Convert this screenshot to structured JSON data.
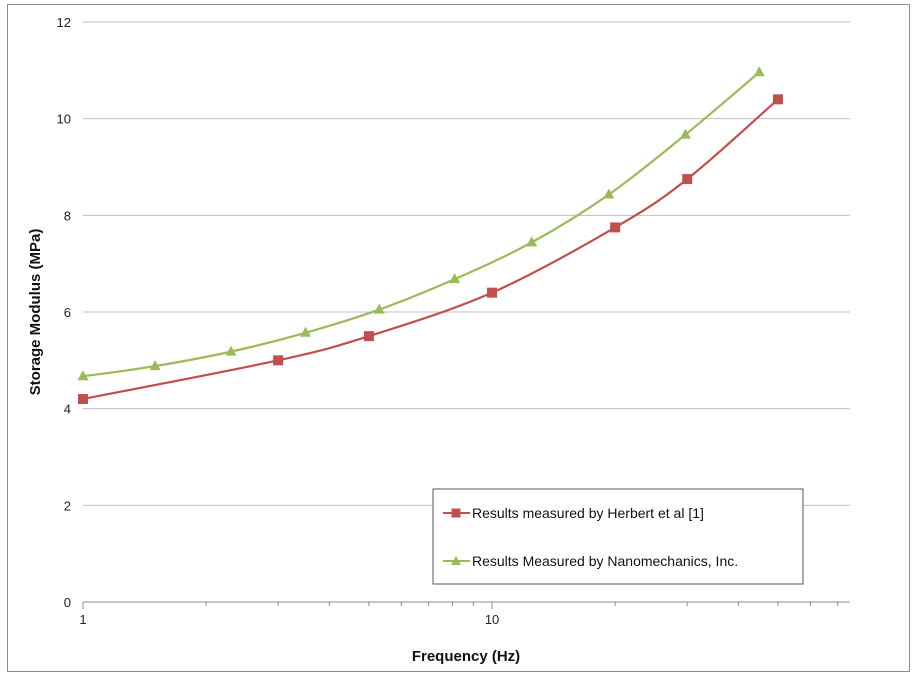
{
  "chart_data": {
    "type": "line",
    "title": "",
    "xlabel": "Frequency (Hz)",
    "ylabel": "Storage Modulus (MPa)",
    "x_scale": "log",
    "xlim": [
      1,
      75
    ],
    "ylim": [
      0,
      12
    ],
    "x_ticks": [
      {
        "value": 1,
        "label": "1"
      },
      {
        "value": 10,
        "label": "10"
      }
    ],
    "x_minor_ticks": [
      2,
      3,
      4,
      5,
      6,
      7,
      8,
      9,
      20,
      30,
      40,
      50,
      60,
      70
    ],
    "y_ticks": [
      {
        "value": 0,
        "label": "0"
      },
      {
        "value": 2,
        "label": "2"
      },
      {
        "value": 4,
        "label": "4"
      },
      {
        "value": 6,
        "label": "6"
      },
      {
        "value": 8,
        "label": "8"
      },
      {
        "value": 10,
        "label": "10"
      },
      {
        "value": 12,
        "label": "12"
      }
    ],
    "grid": {
      "y_major": true,
      "x_major": false
    },
    "legend_position": "bottom-right",
    "series": [
      {
        "name": "Results measured by Herbert et al [1]",
        "color": "#c0504d",
        "marker": "square",
        "x": [
          1,
          3,
          5,
          10,
          20,
          30,
          50
        ],
        "y": [
          4.2,
          5.0,
          5.5,
          6.4,
          7.75,
          8.75,
          10.4
        ]
      },
      {
        "name": "Results Measured by Nanomechanics, Inc.",
        "color": "#9bbb59",
        "marker": "triangle",
        "x": [
          1,
          1.5,
          2.3,
          3.5,
          5.3,
          8.1,
          12.5,
          19.3,
          29.7,
          45
        ],
        "y": [
          4.67,
          4.88,
          5.18,
          5.57,
          6.05,
          6.68,
          7.44,
          8.43,
          9.67,
          10.96
        ]
      }
    ]
  }
}
